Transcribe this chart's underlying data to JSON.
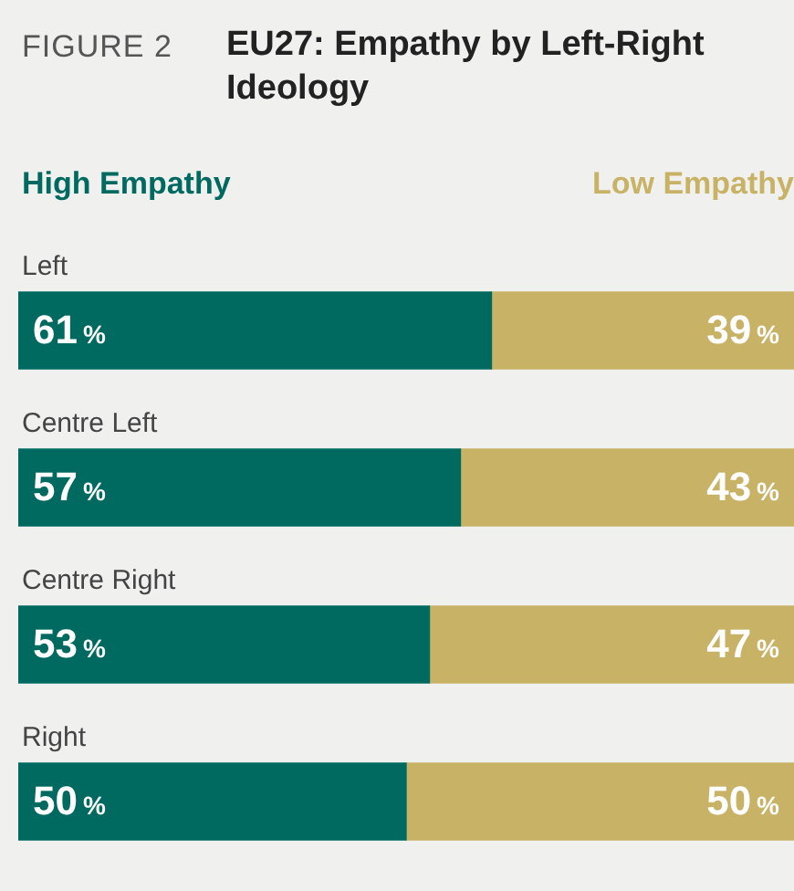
{
  "chart_data": {
    "type": "bar",
    "orientation": "horizontal",
    "stacked": true,
    "title": "EU27:  Empathy by Left-Right Ideology",
    "annotations": [
      "FIGURE 2"
    ],
    "categories": [
      "Left",
      "Centre Left",
      "Centre Right",
      "Right"
    ],
    "legend": "top",
    "series": [
      {
        "name": "High Empathy",
        "color": "#006a60",
        "values": [
          61,
          57,
          53,
          50
        ],
        "value_labels": [
          "61%",
          "57%",
          "53%",
          "50%"
        ]
      },
      {
        "name": "Low Empathy",
        "color": "#c8b266",
        "values": [
          39,
          43,
          47,
          50
        ],
        "value_labels": [
          "39%",
          "43%",
          "47%",
          "50%"
        ]
      }
    ]
  }
}
